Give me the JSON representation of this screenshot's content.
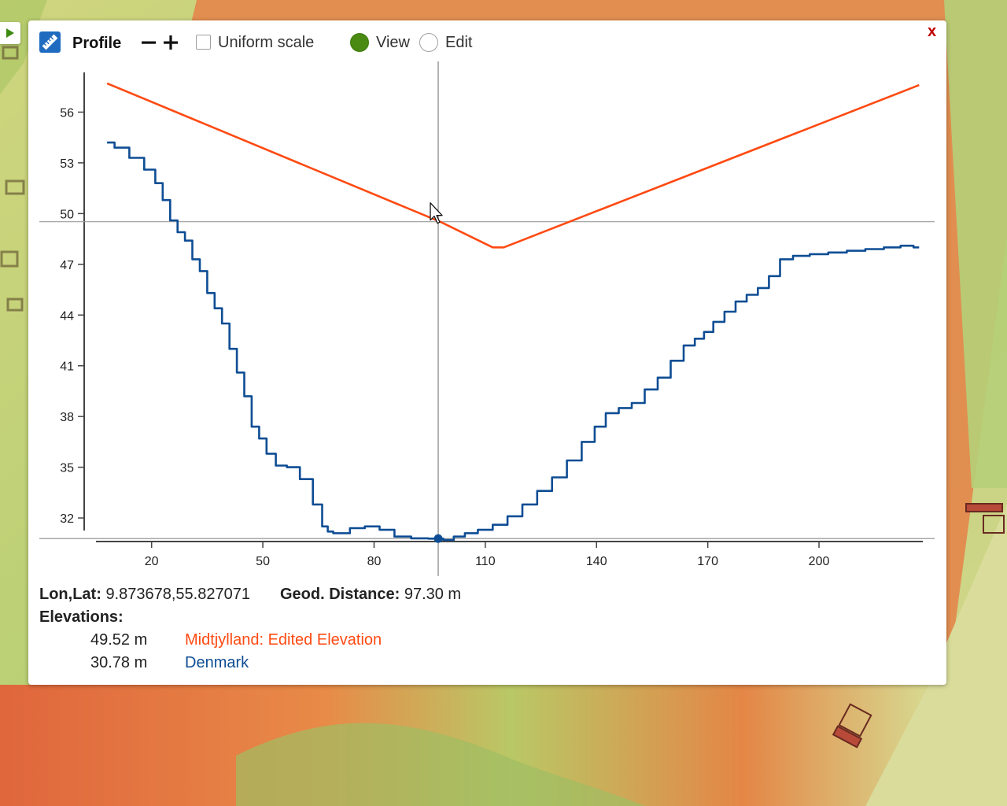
{
  "toolbar": {
    "title": "Profile",
    "zoom_out_label": "−",
    "zoom_in_label": "+",
    "uniform_scale_label": "Uniform scale",
    "uniform_scale_checked": false,
    "view_label": "View",
    "edit_label": "Edit",
    "mode_selected": "View",
    "close_label": "x"
  },
  "colors": {
    "edited_series": "#ff4a12",
    "base_series": "#0e4d94",
    "view_radio": "#4a8a12",
    "close": "#c00000"
  },
  "icons": {
    "expand": "play-triangle-icon",
    "profile": "ruler-icon",
    "cursor": "mouse-pointer-icon"
  },
  "chart_data": {
    "type": "line",
    "xlim": [
      5,
      228
    ],
    "ylim": [
      30.7,
      59
    ],
    "x_ticks": [
      20,
      50,
      80,
      110,
      140,
      170,
      200
    ],
    "y_ticks": [
      32,
      35,
      38,
      41,
      44,
      47,
      50,
      53,
      56
    ],
    "grid": false,
    "crosshair": {
      "x": 97.3,
      "y_top": 49.52,
      "y_bottom": 30.78
    },
    "series": [
      {
        "color": "#ff4a12",
        "x": [
          8,
          98,
          112,
          115,
          227
        ],
        "y": [
          57.7,
          49.5,
          48.0,
          48.0,
          57.6
        ]
      },
      {
        "color": "#0e4d94",
        "x": [
          8,
          12,
          16,
          20,
          22,
          24,
          26,
          28,
          30,
          32,
          34,
          36,
          38,
          40,
          42,
          44,
          46,
          48,
          50,
          52,
          55,
          58,
          62,
          65,
          67,
          68,
          70,
          72,
          75,
          80,
          83,
          88,
          92,
          97.3,
          100,
          103,
          106,
          110,
          114,
          118,
          122,
          126,
          130,
          134,
          138,
          141,
          144,
          148,
          151,
          155,
          158,
          162,
          165,
          168,
          170,
          173,
          176,
          179,
          182,
          185,
          188,
          191,
          195,
          200,
          205,
          210,
          215,
          220,
          224,
          227
        ],
        "y": [
          54.2,
          53.9,
          53.3,
          52.6,
          51.8,
          50.8,
          49.6,
          48.9,
          48.4,
          47.3,
          46.6,
          45.3,
          44.4,
          43.5,
          42.0,
          40.6,
          39.2,
          37.4,
          36.7,
          35.8,
          35.1,
          35.0,
          34.3,
          32.8,
          31.5,
          31.2,
          31.1,
          31.1,
          31.4,
          31.5,
          31.3,
          30.9,
          30.8,
          30.78,
          30.7,
          30.9,
          31.1,
          31.3,
          31.6,
          32.1,
          32.8,
          33.6,
          34.4,
          35.4,
          36.5,
          37.4,
          38.2,
          38.5,
          38.8,
          39.6,
          40.3,
          41.3,
          42.2,
          42.6,
          43.0,
          43.6,
          44.2,
          44.8,
          45.2,
          45.6,
          46.3,
          47.3,
          47.5,
          47.6,
          47.7,
          47.8,
          47.9,
          48.0,
          48.1,
          48.0
        ]
      }
    ]
  },
  "info": {
    "lonlat_label": "Lon,Lat:",
    "lonlat_value": "9.873678,55.827071",
    "distance_label": "Geod. Distance:",
    "distance_value": "97.30 m",
    "elevations_label": "Elevations:",
    "rows": [
      {
        "value": "49.52 m",
        "name": "Midtjylland: Edited Elevation"
      },
      {
        "value": "30.78 m",
        "name": "Denmark"
      }
    ]
  }
}
